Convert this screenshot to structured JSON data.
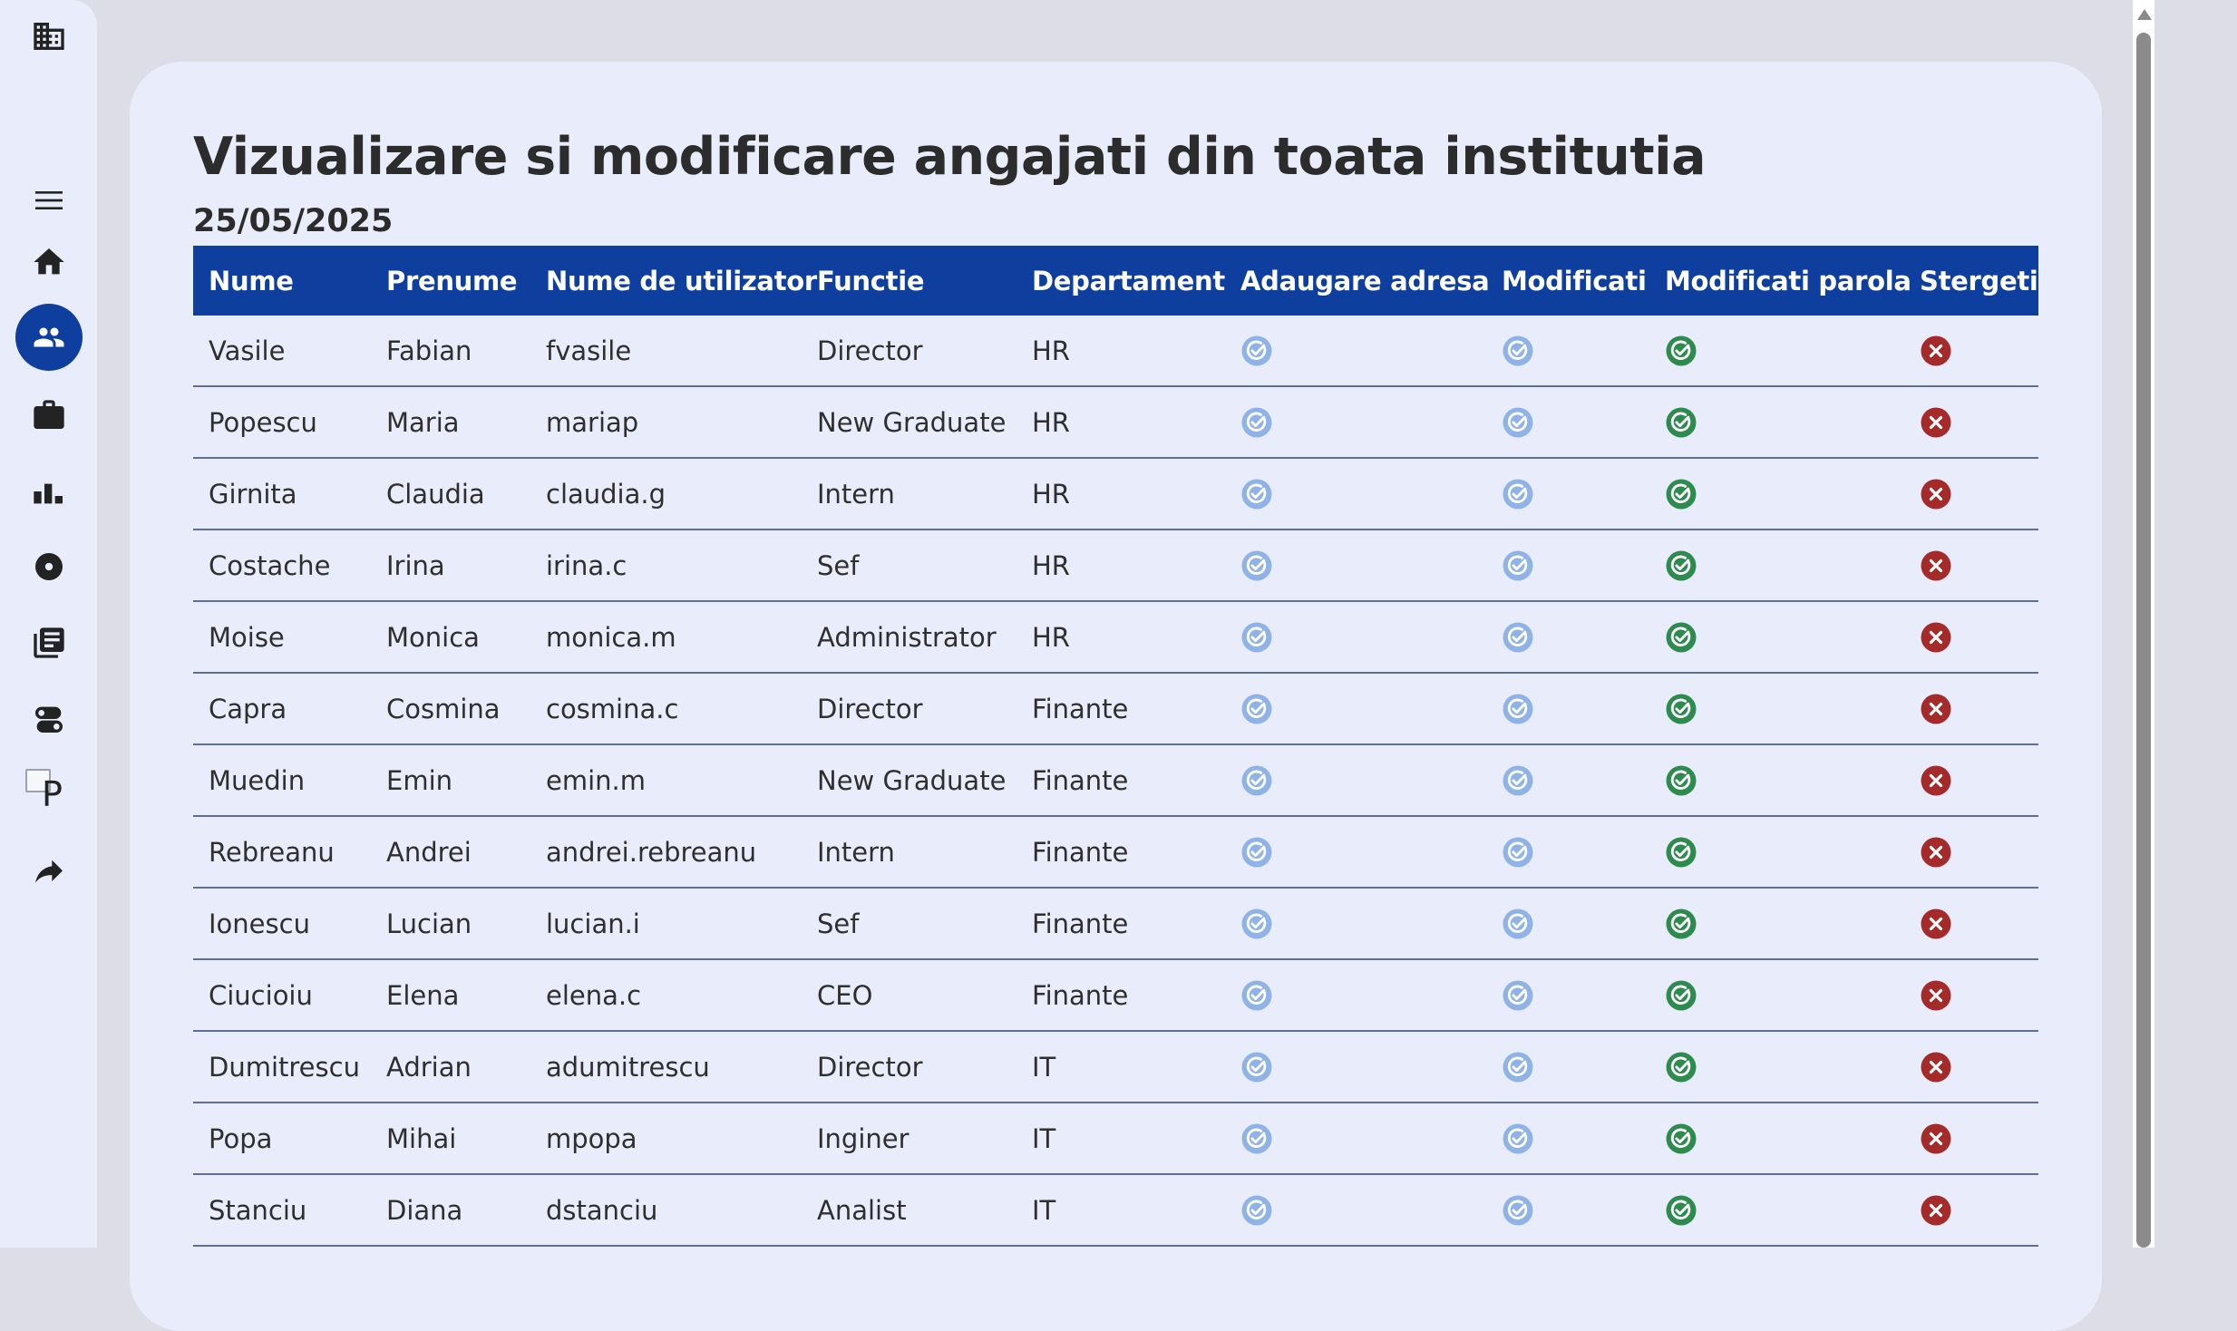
{
  "sidebar": {
    "items": [
      {
        "name": "building-icon",
        "label": "Institutie"
      },
      {
        "name": "menu-icon",
        "label": "Meniu"
      },
      {
        "name": "home-icon",
        "label": "Acasa"
      },
      {
        "name": "people-icon",
        "label": "Angajati",
        "active": true
      },
      {
        "name": "briefcase-icon",
        "label": "Joburi"
      },
      {
        "name": "bar-chart-icon",
        "label": "Statistici"
      },
      {
        "name": "disc-icon",
        "label": "Media"
      },
      {
        "name": "chat-icon",
        "label": "Mesaje"
      },
      {
        "name": "toggles-icon",
        "label": "Setari"
      },
      {
        "name": "broken-image-icon",
        "label": "P"
      },
      {
        "name": "share-arrow-icon",
        "label": "Iesire"
      }
    ]
  },
  "page": {
    "title": "Vizualizare si modificare angajati din toata institutia",
    "date": "25/05/2025"
  },
  "table": {
    "headers": [
      "Nume",
      "Prenume",
      "Nume de utilizator",
      "Functie",
      "Departament",
      "Adaugare adresa",
      "Modificati",
      "Modificati parola",
      "Stergeti"
    ],
    "rows": [
      [
        "Vasile",
        "Fabian",
        "fvasile",
        "Director",
        "HR"
      ],
      [
        "Popescu",
        "Maria",
        "mariap",
        "New Graduate",
        "HR"
      ],
      [
        "Girnita",
        "Claudia",
        "claudia.g",
        "Intern",
        "HR"
      ],
      [
        "Costache",
        "Irina",
        "irina.c",
        "Sef",
        "HR"
      ],
      [
        "Moise",
        "Monica",
        "monica.m",
        "Administrator",
        "HR"
      ],
      [
        "Capra",
        "Cosmina",
        "cosmina.c",
        "Director",
        "Finante"
      ],
      [
        "Muedin",
        "Emin",
        "emin.m",
        "New Graduate",
        "Finante"
      ],
      [
        "Rebreanu",
        "Andrei",
        "andrei.rebreanu",
        "Intern",
        "Finante"
      ],
      [
        "Ionescu",
        "Lucian",
        "lucian.i",
        "Sef",
        "Finante"
      ],
      [
        "Ciucioiu",
        "Elena",
        "elena.c",
        "CEO",
        "Finante"
      ],
      [
        "Dumitrescu",
        "Adrian",
        "adumitrescu",
        "Director",
        "IT"
      ],
      [
        "Popa",
        "Mihai",
        "mpopa",
        "Inginer",
        "IT"
      ],
      [
        "Stanciu",
        "Diana",
        "dstanciu",
        "Analist",
        "IT"
      ]
    ],
    "action_icons": {
      "add_address": "check-circle-icon",
      "edit": "check-circle-icon",
      "edit_password": "check-circle-icon",
      "delete": "x-circle-icon"
    }
  },
  "colors": {
    "header_bg": "#0f3f9e",
    "edit_icon": "#8fb3e6",
    "password_icon": "#2e8b4e",
    "delete_icon": "#a52a2a",
    "card_bg": "#e9ecfa"
  }
}
